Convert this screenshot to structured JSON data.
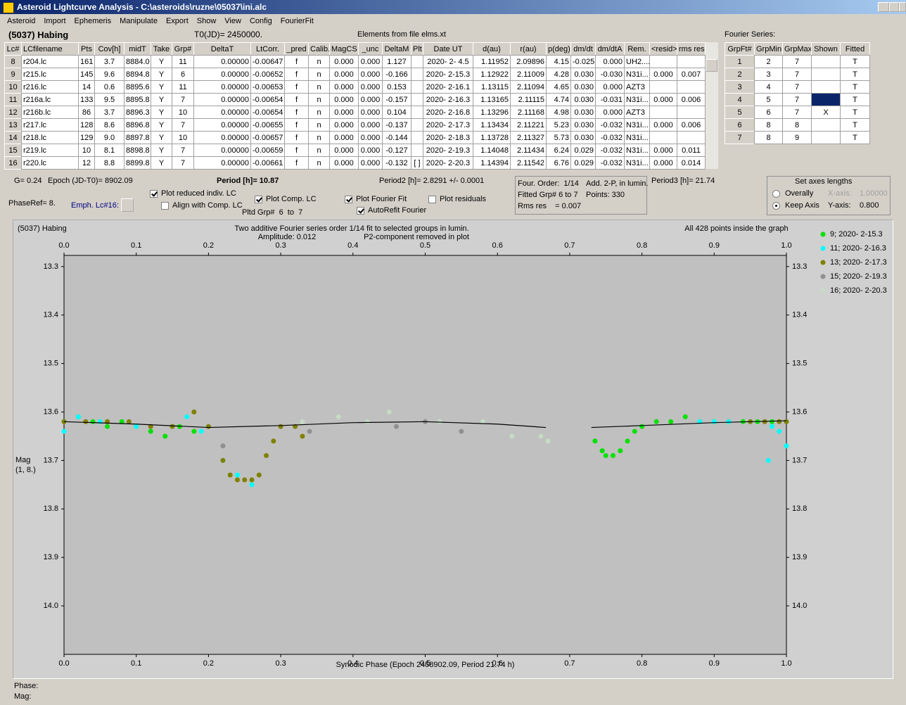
{
  "window": {
    "title": "Asteroid Lightcurve Analysis - C:\\asteroids\\ruzne\\05037\\ini.alc",
    "menu": [
      "Asteroid",
      "Import",
      "Ephemeris",
      "Manipulate",
      "Export",
      "Show",
      "View",
      "Config",
      "FourierFit"
    ]
  },
  "header": {
    "object": "(5037) Habing",
    "t0": "T0(JD)= 2450000.",
    "elements": "Elements from file elms.xt"
  },
  "lc_table": {
    "columns": [
      "Lc#",
      "LCfilename",
      "Pts",
      "Cov[h]",
      "midT",
      "Take",
      "Grp#",
      "DeltaT",
      "LtCorr.",
      "_pred",
      "Calib.",
      "MagCS",
      "_unc",
      "DeltaM",
      "Plt",
      "Date UT",
      "d(au)",
      "r(au)",
      "p(deg)",
      "dm/dt",
      "dm/dtA",
      "Rem.",
      "<resid>",
      "rms res"
    ],
    "rows": [
      [
        "8",
        "r204.lc",
        "161",
        "3.7",
        "8884.0",
        "Y",
        "11",
        "0.00000",
        "-0.00647",
        "f",
        "n",
        "0.000",
        "0.000",
        "1.127",
        null,
        "2020- 2- 4.5",
        "1.11952",
        "2.09896",
        "4.15",
        "-0.025",
        "0.000",
        "UH2....",
        null,
        null
      ],
      [
        "9",
        "r215.lc",
        "145",
        "9.6",
        "8894.8",
        "Y",
        "6",
        "0.00000",
        "-0.00652",
        "f",
        "n",
        "0.000",
        "0.000",
        "-0.166",
        null,
        "2020- 2-15.3",
        "1.12922",
        "2.11009",
        "4.28",
        "0.030",
        "-0.030",
        "N31i...",
        "0.000",
        "0.007"
      ],
      [
        "10",
        "r216.lc",
        "14",
        "0.6",
        "8895.6",
        "Y",
        "11",
        "0.00000",
        "-0.00653",
        "f",
        "n",
        "0.000",
        "0.000",
        "0.153",
        null,
        "2020- 2-16.1",
        "1.13115",
        "2.11094",
        "4.65",
        "0.030",
        "0.000",
        "AZT3",
        null,
        null
      ],
      [
        "11",
        "r216a.lc",
        "133",
        "9.5",
        "8895.8",
        "Y",
        "7",
        "0.00000",
        "-0.00654",
        "f",
        "n",
        "0.000",
        "0.000",
        "-0.157",
        null,
        "2020- 2-16.3",
        "1.13165",
        "2.11115",
        "4.74",
        "0.030",
        "-0.031",
        "N31i...",
        "0.000",
        "0.006"
      ],
      [
        "12",
        "r216b.lc",
        "86",
        "3.7",
        "8896.3",
        "Y",
        "10",
        "0.00000",
        "-0.00654",
        "f",
        "n",
        "0.000",
        "0.000",
        "0.104",
        null,
        "2020- 2-16.8",
        "1.13296",
        "2.11168",
        "4.98",
        "0.030",
        "0.000",
        "AZT3",
        null,
        null
      ],
      [
        "13",
        "r217.lc",
        "128",
        "8.6",
        "8896.8",
        "Y",
        "7",
        "0.00000",
        "-0.00655",
        "f",
        "n",
        "0.000",
        "0.000",
        "-0.137",
        null,
        "2020- 2-17.3",
        "1.13434",
        "2.11221",
        "5.23",
        "0.030",
        "-0.032",
        "N31i...",
        "0.000",
        "0.006"
      ],
      [
        "14",
        "r218.lc",
        "129",
        "9.0",
        "8897.8",
        "Y",
        "10",
        "0.00000",
        "-0.00657",
        "f",
        "n",
        "0.000",
        "0.000",
        "-0.144",
        null,
        "2020- 2-18.3",
        "1.13728",
        "2.11327",
        "5.73",
        "0.030",
        "-0.032",
        "N31i...",
        null,
        null
      ],
      [
        "15",
        "r219.lc",
        "10",
        "8.1",
        "8898.8",
        "Y",
        "7",
        "0.00000",
        "-0.00659",
        "f",
        "n",
        "0.000",
        "0.000",
        "-0.127",
        null,
        "2020- 2-19.3",
        "1.14048",
        "2.11434",
        "6.24",
        "0.029",
        "-0.032",
        "N31i...",
        "0.000",
        "0.011"
      ],
      [
        "16",
        "r220.lc",
        "12",
        "8.8",
        "8899.8",
        "Y",
        "7",
        "0.00000",
        "-0.00661",
        "f",
        "n",
        "0.000",
        "0.000",
        "-0.132",
        "[ ]",
        "2020- 2-20.3",
        "1.14394",
        "2.11542",
        "6.76",
        "0.029",
        "-0.032",
        "N31i...",
        "0.000",
        "0.014"
      ]
    ]
  },
  "fourier": {
    "title": "Fourier Series:",
    "columns": [
      "GrpFt#",
      "GrpMin",
      "GrpMax",
      "Shown",
      "Fitted"
    ],
    "rows": [
      [
        "1",
        "2",
        "7",
        null,
        "T"
      ],
      [
        "2",
        "3",
        "7",
        null,
        "T"
      ],
      [
        "3",
        "4",
        "7",
        null,
        "T"
      ],
      [
        "4",
        "5",
        "7",
        null,
        "T"
      ],
      [
        "5",
        "6",
        "7",
        "X",
        "T"
      ],
      [
        "6",
        "8",
        "8",
        null,
        "T"
      ],
      [
        "7",
        "8",
        "9",
        null,
        "T"
      ]
    ]
  },
  "info": {
    "g": "G= 0.24",
    "epoch": "Epoch (JD-T0)= 8902.09",
    "period": "Period [h]= 10.87",
    "period2": "Period2 [h]= 2.8291 +/- 0.0001",
    "period3": "Period3 [h]= 21.74",
    "phase_ref": "PhaseRef= 8.",
    "emph": "Emph. Lc#16:",
    "pltd_grp": "Pltd Grp#  6  to  7",
    "checkboxes": [
      {
        "label": "Plot reduced indiv. LC",
        "checked": true
      },
      {
        "label": "Align with Comp. LC",
        "checked": false
      },
      {
        "label": "Plot Comp. LC",
        "checked": true
      },
      {
        "label": "Plot Fourier Fit",
        "checked": true
      },
      {
        "label": "AutoRefit Fourier",
        "checked": true
      },
      {
        "label": "Plot residuals",
        "checked": false
      }
    ],
    "fit_box": [
      "Four. Order:  1/14",
      "Add. 2-P, in lumin.",
      "Fitted Grp# 6 to 7",
      "Points: 330",
      "Rms res    = 0.007"
    ],
    "axes": {
      "title": "Set axes lengths",
      "options": [
        {
          "label": "Overally",
          "selected": false
        },
        {
          "label": "Keep Axis",
          "selected": true
        }
      ],
      "x_label": "X-axis:",
      "x_value": "1.00000",
      "y_label": "Y-axis:",
      "y_value": "0.800"
    }
  },
  "plot": {
    "object": "(5037) Habing",
    "subtitle": "Two additive Fourier series order 1/14 fit to selected groups in lumin.",
    "amplitude": "Amplitude: 0.012",
    "note": "P2-component removed in plot",
    "points_note": "All 428 points inside the graph",
    "y_label": [
      "Mag",
      "(1, 8.)"
    ],
    "x_label": "Synodic Phase (Epoch 2458902.09, Period 21.74 h)",
    "xlim": [
      0,
      1
    ],
    "ylim": [
      13.277,
      14.1
    ],
    "xticks": [
      {
        "value": 0,
        "label": "0.0"
      },
      0.1,
      0.2,
      0.3,
      0.4,
      0.5,
      0.6,
      0.7,
      0.8,
      0.9,
      {
        "value": 1,
        "label": "1.0"
      }
    ],
    "yticks": [
      13.3,
      13.4,
      13.5,
      13.6,
      13.7,
      13.8,
      13.9,
      {
        "value": 14,
        "label": "14.0"
      }
    ],
    "series": [
      {
        "name": "9; 2020- 2-15.3",
        "color": "#00e000",
        "x": [
          0.0,
          0.02,
          0.04,
          0.06,
          0.08,
          0.1,
          0.12,
          0.14,
          0.16,
          0.18,
          0.735,
          0.745,
          0.75,
          0.76,
          0.77,
          0.78,
          0.79,
          0.8,
          0.82,
          0.84,
          0.86,
          0.88,
          0.9,
          0.92,
          0.94,
          0.96,
          0.98,
          1.0
        ],
        "y": [
          13.62,
          13.61,
          13.62,
          13.63,
          13.62,
          13.63,
          13.64,
          13.65,
          13.63,
          13.64,
          13.66,
          13.68,
          13.69,
          13.69,
          13.68,
          13.66,
          13.64,
          13.63,
          13.62,
          13.62,
          13.61,
          13.62,
          13.62,
          13.62,
          13.62,
          13.62,
          13.62,
          13.62
        ]
      },
      {
        "name": "11; 2020- 2-16.3",
        "color": "#00ffff",
        "x": [
          0.0,
          0.02,
          0.05,
          0.1,
          0.15,
          0.17,
          0.19,
          0.2,
          0.22,
          0.24,
          0.26,
          0.88,
          0.9,
          0.92,
          0.95,
          0.975,
          0.98,
          0.99,
          1.0
        ],
        "y": [
          13.64,
          13.61,
          13.62,
          13.63,
          13.63,
          13.61,
          13.64,
          13.63,
          13.7,
          13.73,
          13.75,
          13.62,
          13.62,
          13.62,
          13.62,
          13.7,
          13.63,
          13.64,
          13.67
        ]
      },
      {
        "name": "13; 2020- 2-17.3",
        "color": "#808000",
        "x": [
          0.0,
          0.03,
          0.06,
          0.09,
          0.12,
          0.15,
          0.18,
          0.2,
          0.22,
          0.23,
          0.24,
          0.25,
          0.26,
          0.27,
          0.28,
          0.29,
          0.3,
          0.32,
          0.33,
          0.95,
          0.97,
          0.99,
          1.0
        ],
        "y": [
          13.62,
          13.62,
          13.62,
          13.62,
          13.63,
          13.63,
          13.6,
          13.63,
          13.7,
          13.73,
          13.74,
          13.74,
          13.74,
          13.73,
          13.69,
          13.66,
          13.63,
          13.63,
          13.65,
          13.62,
          13.62,
          13.62,
          13.62
        ]
      },
      {
        "name": "15; 2020- 2-19.3",
        "color": "#909090",
        "x": [
          0.22,
          0.34,
          0.46,
          0.5,
          0.55
        ],
        "y": [
          13.67,
          13.64,
          13.63,
          13.62,
          13.64
        ]
      },
      {
        "name": "16; 2020- 2-20.3",
        "color": "#c4dcc4",
        "x": [
          0.33,
          0.38,
          0.42,
          0.45,
          0.52,
          0.58,
          0.62,
          0.66,
          0.67
        ],
        "y": [
          13.62,
          13.61,
          13.62,
          13.6,
          13.62,
          13.62,
          13.65,
          13.65,
          13.66
        ]
      }
    ],
    "fit_curve": {
      "color": "#000000",
      "x": [
        0,
        0.1,
        0.2,
        0.3,
        0.4,
        0.5,
        0.6,
        0.667,
        null,
        0.73,
        0.8,
        0.9,
        1.0
      ],
      "y": [
        13.62,
        13.625,
        13.632,
        13.628,
        13.622,
        13.62,
        13.625,
        13.632,
        null,
        13.632,
        13.628,
        13.622,
        13.618
      ]
    }
  },
  "status": {
    "phase": "Phase:",
    "mag": "Mag:"
  }
}
